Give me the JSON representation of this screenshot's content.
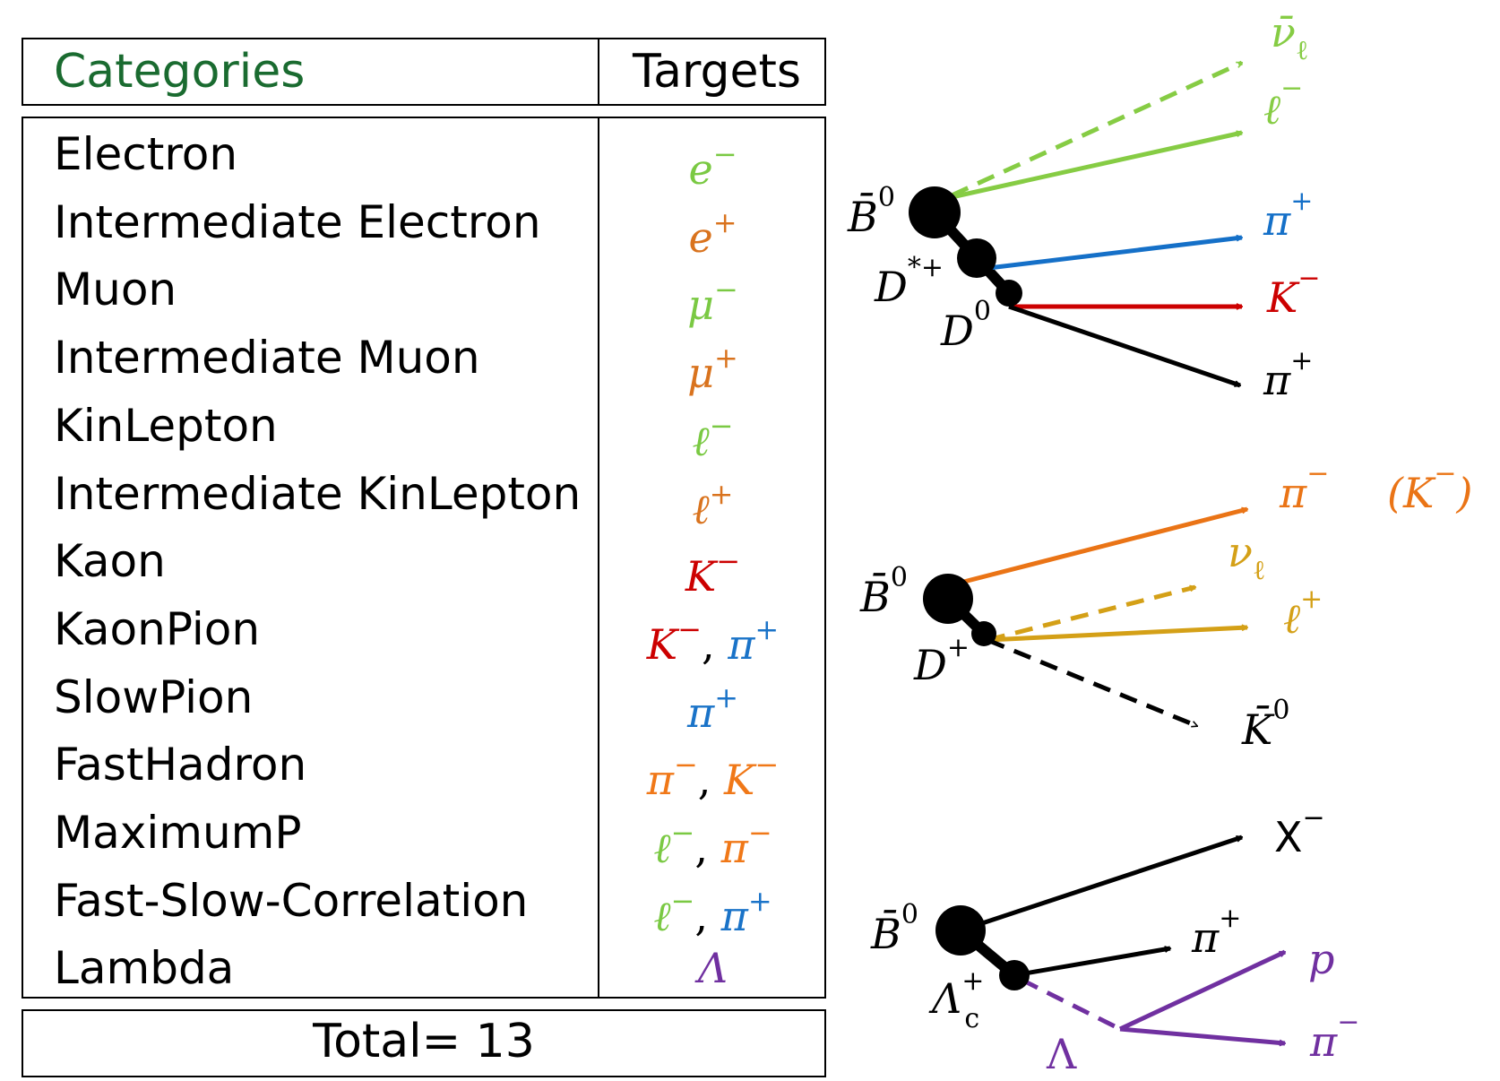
{
  "table": {
    "header_categories": "Categories",
    "header_targets": "Targets",
    "rows": [
      {
        "category": "Electron",
        "targets": [
          {
            "sym": "e",
            "sup": "−",
            "color": "#7ac943"
          }
        ]
      },
      {
        "category": "Intermediate Electron",
        "targets": [
          {
            "sym": "e",
            "sup": "+",
            "color": "#d9731e"
          }
        ]
      },
      {
        "category": "Muon",
        "targets": [
          {
            "sym": "μ",
            "sup": "−",
            "color": "#7ac943"
          }
        ]
      },
      {
        "category": "Intermediate Muon",
        "targets": [
          {
            "sym": "μ",
            "sup": "+",
            "color": "#d9731e"
          }
        ]
      },
      {
        "category": "KinLepton",
        "targets": [
          {
            "sym": "ℓ",
            "sup": "−",
            "color": "#7ac943"
          }
        ]
      },
      {
        "category": "Intermediate KinLepton",
        "targets": [
          {
            "sym": "ℓ",
            "sup": "+",
            "color": "#d9731e"
          }
        ]
      },
      {
        "category": "Kaon",
        "targets": [
          {
            "sym": "K",
            "sup": "−",
            "color": "#cc0000"
          }
        ]
      },
      {
        "category": "KaonPion",
        "targets": [
          {
            "sym": "K",
            "sup": "−",
            "color": "#cc0000"
          },
          {
            "sym": "π",
            "sup": "+",
            "color": "#1a73c8"
          }
        ]
      },
      {
        "category": "SlowPion",
        "targets": [
          {
            "sym": "π",
            "sup": "+",
            "color": "#1a73c8"
          }
        ]
      },
      {
        "category": "FastHadron",
        "targets": [
          {
            "sym": "π",
            "sup": "−",
            "color": "#f07818"
          },
          {
            "sym": "K",
            "sup": "−",
            "color": "#f07818"
          }
        ]
      },
      {
        "category": "MaximumP",
        "targets": [
          {
            "sym": "ℓ",
            "sup": "−",
            "color": "#7ac943"
          },
          {
            "sym": "π",
            "sup": "−",
            "color": "#f07818"
          }
        ]
      },
      {
        "category": "Fast-Slow-Correlation",
        "targets": [
          {
            "sym": "ℓ",
            "sup": "−",
            "color": "#7ac943"
          },
          {
            "sym": "π",
            "sup": "+",
            "color": "#1a73c8"
          }
        ]
      },
      {
        "category": "Lambda",
        "targets": [
          {
            "sym": "Λ",
            "sup": "",
            "color": "#7030a0"
          }
        ]
      }
    ],
    "total_label": "Total= 13"
  },
  "colors": {
    "header_green": "#1a6b30",
    "lepton_green": "#86cc44",
    "pion_blue": "#1570c8",
    "kaon_red": "#cc0000",
    "fast_orange": "#ea7416",
    "gold": "#d4a017",
    "purple": "#7030a0",
    "black": "#000000"
  },
  "diagram1": {
    "B": {
      "sym": "B̄",
      "sup": "0"
    },
    "Dstar": {
      "sym": "D",
      "sup": "*+"
    },
    "D0": {
      "sym": "D",
      "sup": "0"
    },
    "nu": {
      "sym": "ν̄",
      "sub": "ℓ"
    },
    "lep": {
      "sym": "ℓ",
      "sup": "−"
    },
    "pi_slow": {
      "sym": "π",
      "sup": "+"
    },
    "K": {
      "sym": "K",
      "sup": "−"
    },
    "pi": {
      "sym": "π",
      "sup": "+"
    }
  },
  "diagram2": {
    "B": {
      "sym": "B̄",
      "sup": "0"
    },
    "D": {
      "sym": "D",
      "sup": "+"
    },
    "pi_minus": {
      "sym": "π",
      "sup": "−"
    },
    "K_alt": {
      "text": "(K",
      "sup": "−",
      "close": ")"
    },
    "nu": {
      "sym": "ν",
      "sub": "ℓ"
    },
    "lep": {
      "sym": "ℓ",
      "sup": "+"
    },
    "K0": {
      "sym": "K̄",
      "sup": "0"
    }
  },
  "diagram3": {
    "B": {
      "sym": "B̄",
      "sup": "0"
    },
    "X": {
      "sym": "X",
      "sup": "−"
    },
    "pi": {
      "sym": "π",
      "sup": "+"
    },
    "Lc": {
      "sym": "Λ",
      "sup": "+",
      "sub": "c"
    },
    "p": {
      "sym": "p"
    },
    "pi_minus": {
      "sym": "π",
      "sup": "−"
    },
    "Lambda": {
      "sym": "Λ"
    }
  }
}
